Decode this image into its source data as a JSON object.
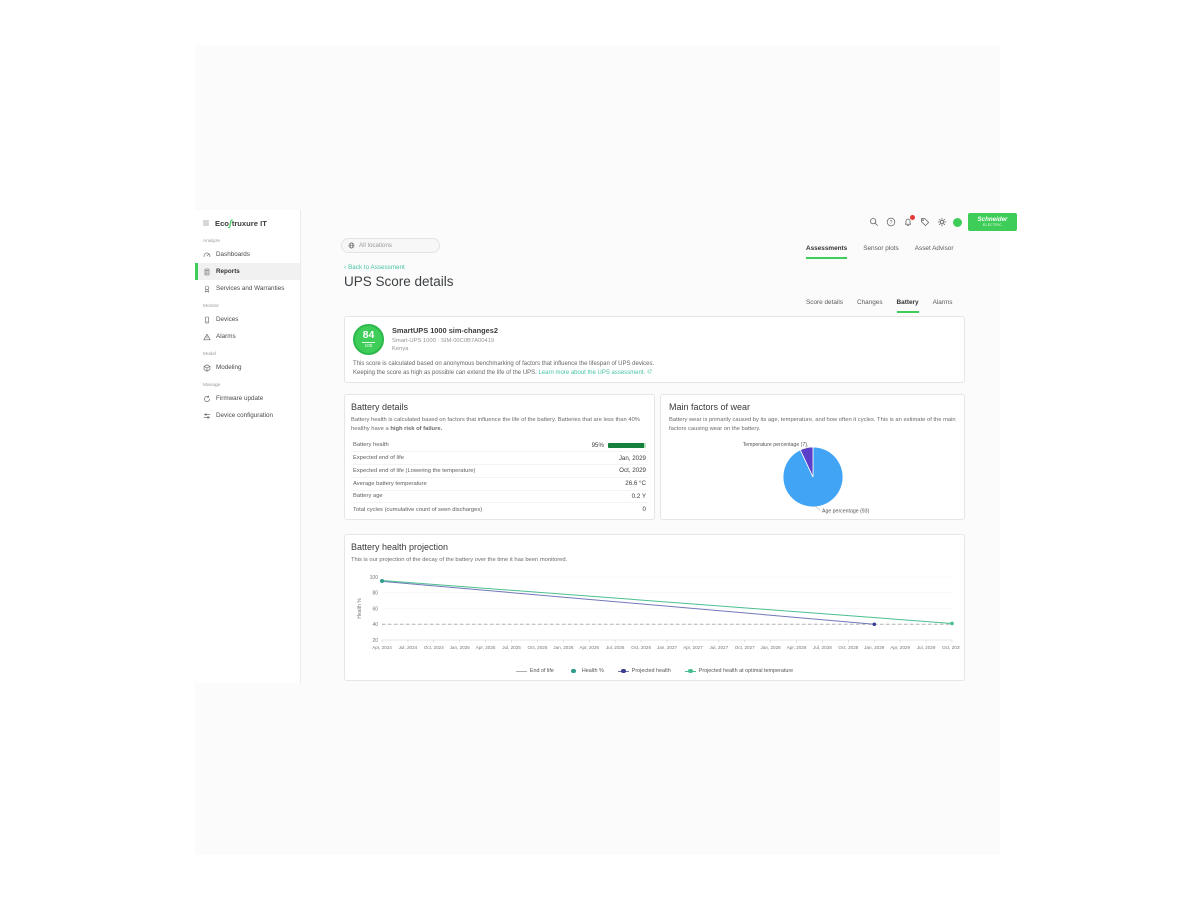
{
  "colors": {
    "brand_green": "#3dcd58",
    "link_teal": "#46c2a3",
    "health_bar_fill": "#15803d",
    "pie_age_blue": "#41a4f5",
    "pie_temperature_purple": "#5b3fc9"
  },
  "brand": {
    "logo_eco": "Eco",
    "logo_s": "ʃ",
    "logo_rest": "truxure IT",
    "schneider_line1": "Schneider",
    "schneider_line2": "ELECTRIC"
  },
  "sidebar": {
    "sections": [
      {
        "label": "Analyze",
        "items": [
          {
            "label": "Dashboards",
            "icon": "gauge-icon",
            "active": false
          },
          {
            "label": "Reports",
            "icon": "report-icon",
            "active": true
          },
          {
            "label": "Services and Warranties",
            "icon": "services-icon",
            "active": false
          }
        ]
      },
      {
        "label": "Monitor",
        "items": [
          {
            "label": "Devices",
            "icon": "device-icon",
            "active": false
          },
          {
            "label": "Alarms",
            "icon": "alarm-icon",
            "active": false
          }
        ]
      },
      {
        "label": "Model",
        "items": [
          {
            "label": "Modeling",
            "icon": "modeling-icon",
            "active": false
          }
        ]
      },
      {
        "label": "Manage",
        "items": [
          {
            "label": "Firmware update",
            "icon": "firmware-icon",
            "active": false
          },
          {
            "label": "Device configuration",
            "icon": "config-icon",
            "active": false
          }
        ]
      }
    ]
  },
  "topbar": {
    "location_filter_placeholder": "All locations",
    "tabs": [
      {
        "label": "Assessments"
      },
      {
        "label": "Sensor plots"
      },
      {
        "label": "Asset Advisor"
      }
    ]
  },
  "page": {
    "back_link": "Back to Assessment",
    "title": "UPS Score details",
    "subtabs": [
      {
        "label": "Score details"
      },
      {
        "label": "Changes"
      },
      {
        "label": "Battery"
      },
      {
        "label": "Alarms"
      }
    ]
  },
  "score_card": {
    "score": "84",
    "score_max": "100",
    "device_name": "SmartUPS 1000 sim-changes2",
    "device_meta": "Smart-UPS 1000 · SIM-00C0B7A00419",
    "location": "Kenya",
    "description_line1": "This score is calculated based on anonymous benchmarking of factors that influence the lifespan of UPS devices.",
    "description_line2": "Keeping the score as high as possible can extend the life of the UPS.",
    "learn_more_link": "Learn more about the UPS assessment."
  },
  "battery_details": {
    "title": "Battery details",
    "description": "Battery health is calculated based on factors that influence the life of the battery. Batteries that are less than 40% healthy have a ",
    "description_bold": "high risk of failure.",
    "health_percent": 95,
    "rows": [
      {
        "label": "Battery health",
        "value": "95%",
        "bar": true
      },
      {
        "label": "Expected end of life",
        "value": "Jan, 2029"
      },
      {
        "label": "Expected end of life (Lowering the temperature)",
        "value": "Oct, 2029"
      },
      {
        "label": "Average battery temperature",
        "value": "26.6 °C"
      },
      {
        "label": "Battery age",
        "value": "0.2 Y"
      },
      {
        "label": "Total cycles (cumulative count of seen discharges)",
        "value": "0"
      }
    ]
  },
  "wear": {
    "title": "Main factors of wear",
    "description": "Battery wear is primarily caused by its age, temperature, and how often it cycles. This is an estimate of the main factors causing wear on the battery."
  },
  "projection": {
    "title": "Battery health projection",
    "description": "This is our projection of the decay of the battery over the time it has been monitored."
  },
  "chart_data": [
    {
      "type": "pie",
      "title": "Main factors of wear",
      "labels": [
        "Age percentage",
        "Temperature percentage"
      ],
      "values": [
        93,
        7
      ],
      "colors": [
        "#41a4f5",
        "#5b3fc9"
      ],
      "annotations": [
        "Age percentage (93)",
        "Temperature percentage (7)"
      ]
    },
    {
      "type": "line",
      "title": "Battery health projection",
      "xlabel": "",
      "ylabel": "Health %",
      "ylim": [
        20,
        100
      ],
      "yticks": [
        20,
        40,
        60,
        80,
        100
      ],
      "grid": true,
      "legend_position": "bottom",
      "x_categories": [
        "Apr, 2024",
        "Jul, 2024",
        "Oct, 2024",
        "Jan, 2025",
        "Apr, 2025",
        "Jul, 2025",
        "Oct, 2025",
        "Jan, 2026",
        "Apr, 2026",
        "Jul, 2026",
        "Oct, 2026",
        "Jan, 2027",
        "Apr, 2027",
        "Jul, 2027",
        "Oct, 2027",
        "Jan, 2028",
        "Apr, 2028",
        "Jul, 2028",
        "Oct, 2028",
        "Jan, 2029",
        "Apr, 2029",
        "Jul, 2029",
        "Oct, 2029"
      ],
      "series": [
        {
          "name": "End of life",
          "style": "dashed",
          "color": "#b0b0b0",
          "points": [
            [
              "Apr, 2024",
              40
            ],
            [
              "Oct, 2029",
              40
            ]
          ]
        },
        {
          "name": "Health %",
          "style": "scatter",
          "color": "#2f9e8e",
          "points": [
            [
              "Apr, 2024",
              95
            ]
          ]
        },
        {
          "name": "Projected health",
          "style": "solid",
          "color": "#7377b8",
          "marker_color": "#3b3d8f",
          "end_marker": true,
          "points": [
            [
              "Apr, 2024",
              94.5
            ],
            [
              "Jan, 2029",
              40
            ]
          ]
        },
        {
          "name": "Projected health at optimal temperature",
          "style": "solid",
          "color": "#49c08f",
          "end_marker": true,
          "points": [
            [
              "Apr, 2024",
              95.5
            ],
            [
              "Oct, 2029",
              41
            ]
          ]
        }
      ]
    }
  ]
}
